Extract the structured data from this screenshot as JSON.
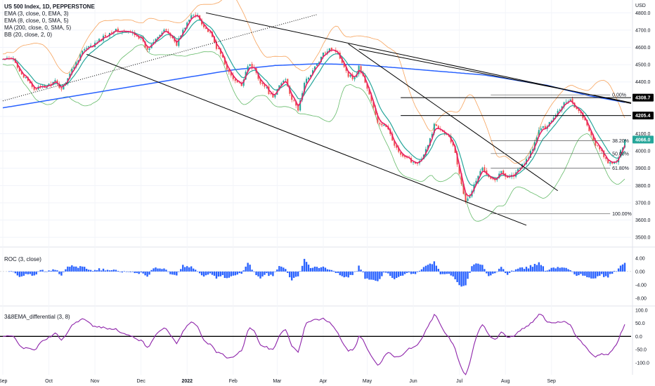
{
  "header": {
    "symbol": "US 500 Index, 1D, PEPPERSTONE",
    "indicators": [
      "EMA (3, close, 0, EMA, 3)",
      "EMA (8, close, 0, SMA, 5)",
      "MA (200, close, 0, SMA, 5)",
      "BB (20, close, 2, 0)"
    ],
    "roc_label": "ROC (3, close)",
    "diff_label": "3&8EMA_differential (3, 8)",
    "currency": "USD"
  },
  "colors": {
    "up": "#26a69a",
    "down": "#ef5350",
    "ema3": "#e91e63",
    "ma200": "#2962ff",
    "bb": "#f7a35c",
    "bb_lower": "#66bb6a",
    "roc": "#2962ff",
    "diff": "#8e24aa",
    "trend": "#000000"
  },
  "chart_data": [
    {
      "type": "candlestick",
      "title": "US 500 Index, 1D, PEPPERSTONE",
      "y_axis_ticks": [
        3500,
        3600,
        3700,
        3800,
        3900,
        4000,
        4100,
        4200,
        4300,
        4400,
        4500,
        4600,
        4700,
        4800
      ],
      "ylim": [
        3460,
        4850
      ],
      "x_ticks": [
        "Sep",
        "Oct",
        "Nov",
        "Dec",
        "2022",
        "Feb",
        "Mar",
        "Apr",
        "May",
        "Jun",
        "Jul",
        "Aug",
        "Sep"
      ],
      "price_keypoints": [
        [
          0,
          4530
        ],
        [
          5,
          4530
        ],
        [
          10,
          4430
        ],
        [
          15,
          4360
        ],
        [
          20,
          4370
        ],
        [
          25,
          4400
        ],
        [
          28,
          4360
        ],
        [
          33,
          4470
        ],
        [
          38,
          4580
        ],
        [
          43,
          4610
        ],
        [
          48,
          4660
        ],
        [
          53,
          4700
        ],
        [
          58,
          4690
        ],
        [
          63,
          4680
        ],
        [
          66,
          4650
        ],
        [
          69,
          4580
        ],
        [
          73,
          4660
        ],
        [
          78,
          4700
        ],
        [
          83,
          4620
        ],
        [
          87,
          4720
        ],
        [
          90,
          4780
        ],
        [
          93,
          4790
        ],
        [
          96,
          4720
        ],
        [
          99,
          4680
        ],
        [
          102,
          4600
        ],
        [
          105,
          4540
        ],
        [
          108,
          4450
        ],
        [
          111,
          4400
        ],
        [
          114,
          4380
        ],
        [
          117,
          4500
        ],
        [
          120,
          4480
        ],
        [
          123,
          4400
        ],
        [
          126,
          4360
        ],
        [
          129,
          4300
        ],
        [
          132,
          4380
        ],
        [
          135,
          4420
        ],
        [
          138,
          4300
        ],
        [
          141,
          4240
        ],
        [
          144,
          4390
        ],
        [
          147,
          4450
        ],
        [
          150,
          4500
        ],
        [
          153,
          4560
        ],
        [
          156,
          4600
        ],
        [
          159,
          4580
        ],
        [
          162,
          4520
        ],
        [
          165,
          4440
        ],
        [
          168,
          4420
        ],
        [
          170,
          4490
        ],
        [
          173,
          4400
        ],
        [
          176,
          4290
        ],
        [
          179,
          4160
        ],
        [
          182,
          4150
        ],
        [
          185,
          4100
        ],
        [
          188,
          4010
        ],
        [
          191,
          3960
        ],
        [
          194,
          3950
        ],
        [
          197,
          3930
        ],
        [
          200,
          3950
        ],
        [
          203,
          4030
        ],
        [
          206,
          4150
        ],
        [
          209,
          4130
        ],
        [
          212,
          4100
        ],
        [
          215,
          4040
        ],
        [
          217,
          3930
        ],
        [
          219,
          3820
        ],
        [
          221,
          3700
        ],
        [
          223,
          3740
        ],
        [
          226,
          3830
        ],
        [
          229,
          3900
        ],
        [
          232,
          3860
        ],
        [
          235,
          3830
        ],
        [
          238,
          3880
        ],
        [
          241,
          3850
        ],
        [
          244,
          3860
        ],
        [
          247,
          3900
        ],
        [
          250,
          3950
        ],
        [
          253,
          4010
        ],
        [
          256,
          4120
        ],
        [
          259,
          4140
        ],
        [
          262,
          4180
        ],
        [
          265,
          4230
        ],
        [
          268,
          4280
        ],
        [
          271,
          4300
        ],
        [
          274,
          4240
        ],
        [
          277,
          4200
        ],
        [
          280,
          4110
        ],
        [
          283,
          4040
        ],
        [
          286,
          3990
        ],
        [
          289,
          3930
        ],
        [
          291,
          3920
        ],
        [
          294,
          3960
        ],
        [
          297,
          4066
        ]
      ],
      "moving_average_200_keypoints": [
        [
          0,
          4250
        ],
        [
          40,
          4330
        ],
        [
          80,
          4410
        ],
        [
          110,
          4470
        ],
        [
          130,
          4495
        ],
        [
          150,
          4505
        ],
        [
          170,
          4500
        ],
        [
          200,
          4470
        ],
        [
          230,
          4440
        ],
        [
          260,
          4380
        ],
        [
          280,
          4320
        ],
        [
          297,
          4282
        ]
      ],
      "trendlines": [
        {
          "from": [
            97,
            4800
          ],
          "to": [
            300,
            4275
          ],
          "label": "upper falling line"
        },
        {
          "from": [
            40,
            4560
          ],
          "to": [
            250,
            3570
          ],
          "label": "lower falling line"
        },
        {
          "from": [
            165,
            4620
          ],
          "to": [
            265,
            3770
          ],
          "label": "steep falling line"
        },
        {
          "from": [
            170,
            4590
          ],
          "to": [
            300,
            4280
          ],
          "label": "secondary falling line"
        }
      ],
      "dotted_trendline": {
        "from": [
          0,
          4290
        ],
        "to": [
          150,
          4790
        ]
      },
      "horizontal_levels": [
        4308.7,
        4205.4
      ],
      "fibonacci": [
        {
          "label": "0.00%",
          "value": 4325
        },
        {
          "label": "38.20%",
          "value": 4060
        },
        {
          "label": "50.00%",
          "value": 3985
        },
        {
          "label": "61.80%",
          "value": 3900
        },
        {
          "label": "100.00%",
          "value": 3636
        }
      ],
      "price_tags": [
        {
          "value": 4308.7,
          "text": "4308.7",
          "style": "black"
        },
        {
          "value": 4205.4,
          "text": "4205.4",
          "style": "black"
        },
        {
          "value": 4066.0,
          "text": "4066.0",
          "style": "teal"
        }
      ]
    },
    {
      "type": "bar",
      "title": "ROC (3, close)",
      "y_axis_ticks": [
        4.0,
        0.0,
        -4.0,
        -8.0
      ],
      "y_tick_labels": [
        "4.00",
        "0.00",
        "-4.00",
        "-8.00"
      ],
      "ylim": [
        -9.5,
        6.5
      ]
    },
    {
      "type": "line",
      "title": "3&8EMA_differential (3, 8)",
      "y_axis_ticks": [
        100,
        50,
        0,
        -50,
        -100
      ],
      "y_tick_labels": [
        "100.0",
        "50.0",
        "0.0",
        "-50.0",
        "-100.0"
      ],
      "ylim": [
        -130,
        105
      ]
    }
  ]
}
